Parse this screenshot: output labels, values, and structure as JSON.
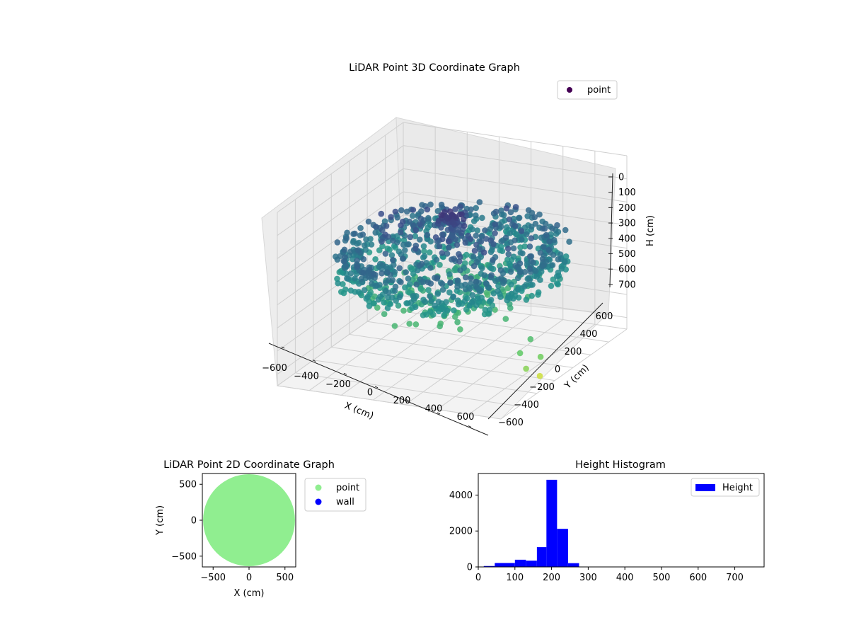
{
  "chart_data": [
    {
      "type": "scatter",
      "projection": "3d",
      "title": "LiDAR Point 3D Coordinate Graph",
      "xlabel": "X (cm)",
      "ylabel": "Y (cm)",
      "zlabel": "H (cm)",
      "xlim": [
        -700,
        700
      ],
      "ylim": [
        -700,
        700
      ],
      "zlim": [
        750,
        0
      ],
      "zaxis_inverted": true,
      "xticks": [
        "−600",
        "−400",
        "−200",
        "0",
        "200",
        "400",
        "600"
      ],
      "yticks": [
        "−600",
        "−400",
        "−200",
        "0",
        "200",
        "400",
        "600"
      ],
      "zticks": [
        "0",
        "100",
        "200",
        "300",
        "400",
        "500",
        "600",
        "700"
      ],
      "colormap": "viridis",
      "legend": {
        "location": "upper-right",
        "entries": [
          {
            "label": "point",
            "color": "#440154"
          }
        ]
      },
      "grid": true,
      "series": [
        {
          "name": "point",
          "shape": "ring",
          "radius_range": [
            500,
            640
          ],
          "height_range": [
            240,
            400
          ]
        },
        {
          "name": "point",
          "shape": "ring",
          "radius_range": [
            150,
            480
          ],
          "height_range": [
            180,
            500
          ]
        },
        {
          "name": "point",
          "shape": "cluster",
          "center": [
            0,
            0
          ],
          "height": 120
        },
        {
          "name": "point",
          "shape": "outliers",
          "points": [
            [
              640,
              -380,
              560
            ],
            [
              660,
              -300,
              520
            ],
            [
              700,
              -420,
              610
            ],
            [
              740,
              -330,
              580
            ],
            [
              690,
              -250,
              690
            ]
          ]
        }
      ]
    },
    {
      "type": "scatter",
      "title": "LiDAR Point 2D Coordinate Graph",
      "xlabel": "X (cm)",
      "ylabel": "Y (cm)",
      "xlim": [
        -650,
        650
      ],
      "ylim": [
        -650,
        650
      ],
      "xticks": [
        -500,
        0,
        500
      ],
      "yticks": [
        -500,
        0,
        500
      ],
      "legend": {
        "location": "outside-right",
        "entries": [
          {
            "label": "point",
            "color": "#90ee90"
          },
          {
            "label": "wall",
            "color": "#0000ff"
          }
        ]
      },
      "grid": false,
      "series": [
        {
          "name": "point",
          "color": "#90ee90",
          "shape": "disk",
          "center": [
            0,
            0
          ],
          "radius": 640
        },
        {
          "name": "wall",
          "color": "#0000ff",
          "points": []
        }
      ]
    },
    {
      "type": "bar",
      "title": "Height Histogram",
      "xlim": [
        0,
        780
      ],
      "ylim": [
        0,
        5200
      ],
      "xticks": [
        0,
        100,
        200,
        300,
        400,
        500,
        600,
        700
      ],
      "yticks": [
        0,
        2000,
        4000
      ],
      "legend": {
        "location": "top-right",
        "entries": [
          {
            "label": "Height",
            "color": "#0000ff"
          }
        ]
      },
      "grid": false,
      "series": [
        {
          "name": "Height",
          "color": "#0000ff",
          "bins": [
            {
              "x0": 15,
              "x1": 45,
              "value": 50
            },
            {
              "x0": 45,
              "x1": 100,
              "value": 220
            },
            {
              "x0": 100,
              "x1": 130,
              "value": 400
            },
            {
              "x0": 130,
              "x1": 160,
              "value": 350
            },
            {
              "x0": 160,
              "x1": 186,
              "value": 1100
            },
            {
              "x0": 186,
              "x1": 215,
              "value": 4850
            },
            {
              "x0": 215,
              "x1": 245,
              "value": 2120
            },
            {
              "x0": 245,
              "x1": 275,
              "value": 210
            },
            {
              "x0": 275,
              "x1": 780,
              "value": 8
            }
          ]
        }
      ]
    }
  ]
}
